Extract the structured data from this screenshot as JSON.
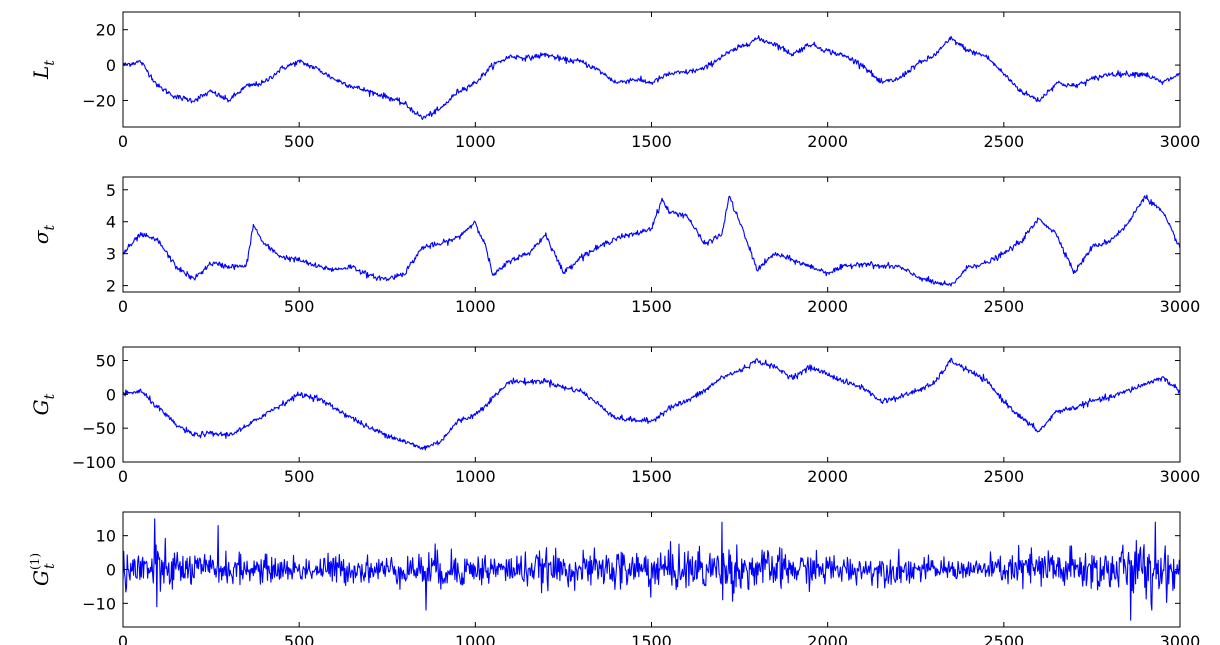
{
  "chart_data": [
    {
      "type": "line",
      "ylabel_base": "L",
      "ylabel_sub": "t",
      "ylabel_sup": "",
      "xlim": [
        0,
        3000
      ],
      "ylim": [
        -35,
        30
      ],
      "xticks": [
        0,
        500,
        1000,
        1500,
        2000,
        2500,
        3000
      ],
      "yticks": [
        -20,
        0,
        20
      ],
      "ytick_labels": [
        "−20",
        "0",
        "20"
      ],
      "color": "#0000ff",
      "grid": false,
      "series": [
        {
          "x": [
            0,
            50,
            100,
            150,
            200,
            250,
            300,
            350,
            400,
            450,
            500,
            550,
            600,
            650,
            700,
            750,
            800,
            850,
            900,
            950,
            1000,
            1050,
            1100,
            1150,
            1200,
            1250,
            1300,
            1350,
            1400,
            1450,
            1500,
            1550,
            1600,
            1650,
            1700,
            1750,
            1800,
            1850,
            1900,
            1950,
            2000,
            2050,
            2100,
            2150,
            2200,
            2250,
            2300,
            2350,
            2400,
            2450,
            2500,
            2550,
            2600,
            2650,
            2700,
            2750,
            2800,
            2850,
            2900,
            2950,
            3000
          ],
          "values": [
            0,
            2,
            -12,
            -18,
            -20,
            -15,
            -20,
            -12,
            -10,
            -2,
            2,
            -2,
            -8,
            -12,
            -15,
            -18,
            -22,
            -30,
            -25,
            -15,
            -10,
            0,
            5,
            4,
            6,
            3,
            2,
            -3,
            -10,
            -8,
            -10,
            -5,
            -4,
            -2,
            5,
            10,
            15,
            12,
            6,
            12,
            8,
            5,
            0,
            -10,
            -8,
            0,
            5,
            15,
            8,
            5,
            -5,
            -15,
            -20,
            -10,
            -12,
            -8,
            -5,
            -5,
            -5,
            -10,
            -5
          ]
        }
      ]
    },
    {
      "type": "line",
      "ylabel_base": "σ",
      "ylabel_sub": "t",
      "ylabel_sup": "",
      "xlim": [
        0,
        3000
      ],
      "ylim": [
        1.8,
        5.4
      ],
      "xticks": [
        0,
        500,
        1000,
        1500,
        2000,
        2500,
        3000
      ],
      "yticks": [
        2,
        3,
        4,
        5
      ],
      "ytick_labels": [
        "2",
        "3",
        "4",
        "5"
      ],
      "color": "#0000ff",
      "grid": false,
      "series": [
        {
          "x": [
            0,
            50,
            100,
            150,
            200,
            250,
            300,
            350,
            370,
            400,
            450,
            500,
            550,
            600,
            650,
            700,
            750,
            800,
            850,
            900,
            950,
            1000,
            1030,
            1050,
            1100,
            1150,
            1200,
            1250,
            1300,
            1350,
            1400,
            1450,
            1500,
            1530,
            1550,
            1600,
            1650,
            1700,
            1720,
            1750,
            1800,
            1850,
            1900,
            1950,
            2000,
            2050,
            2100,
            2150,
            2200,
            2250,
            2300,
            2350,
            2400,
            2450,
            2500,
            2550,
            2600,
            2650,
            2700,
            2750,
            2800,
            2850,
            2900,
            2950,
            3000
          ],
          "values": [
            3.0,
            3.6,
            3.4,
            2.6,
            2.2,
            2.7,
            2.6,
            2.6,
            3.9,
            3.3,
            2.9,
            2.8,
            2.6,
            2.5,
            2.6,
            2.3,
            2.2,
            2.4,
            3.2,
            3.3,
            3.5,
            4.0,
            3.2,
            2.3,
            2.8,
            3.0,
            3.6,
            2.4,
            2.9,
            3.2,
            3.5,
            3.6,
            3.8,
            4.7,
            4.3,
            4.2,
            3.3,
            3.6,
            4.8,
            4.0,
            2.5,
            3.0,
            2.8,
            2.6,
            2.4,
            2.6,
            2.7,
            2.6,
            2.6,
            2.3,
            2.1,
            2.0,
            2.6,
            2.7,
            3.0,
            3.4,
            4.1,
            3.6,
            2.4,
            3.2,
            3.4,
            3.9,
            4.8,
            4.3,
            3.2
          ]
        }
      ]
    },
    {
      "type": "line",
      "ylabel_base": "G",
      "ylabel_sub": "t",
      "ylabel_sup": "",
      "xlim": [
        0,
        3000
      ],
      "ylim": [
        -100,
        70
      ],
      "xticks": [
        0,
        500,
        1000,
        1500,
        2000,
        2500,
        3000
      ],
      "yticks": [
        -100,
        -50,
        0,
        50
      ],
      "ytick_labels": [
        "−100",
        "−50",
        "0",
        "50"
      ],
      "color": "#0000ff",
      "grid": false,
      "series": [
        {
          "x": [
            0,
            50,
            100,
            150,
            200,
            250,
            300,
            350,
            400,
            450,
            500,
            550,
            600,
            650,
            700,
            750,
            800,
            850,
            900,
            950,
            1000,
            1050,
            1100,
            1150,
            1200,
            1250,
            1300,
            1350,
            1400,
            1450,
            1500,
            1550,
            1600,
            1650,
            1700,
            1750,
            1800,
            1850,
            1900,
            1950,
            2000,
            2050,
            2100,
            2150,
            2200,
            2250,
            2300,
            2350,
            2400,
            2450,
            2500,
            2550,
            2600,
            2650,
            2700,
            2750,
            2800,
            2850,
            2900,
            2950,
            3000
          ],
          "values": [
            0,
            5,
            -20,
            -45,
            -60,
            -58,
            -60,
            -48,
            -30,
            -15,
            0,
            -5,
            -20,
            -35,
            -50,
            -60,
            -70,
            -80,
            -70,
            -40,
            -30,
            -5,
            20,
            18,
            20,
            10,
            5,
            -15,
            -35,
            -38,
            -40,
            -20,
            -10,
            5,
            25,
            35,
            50,
            40,
            25,
            40,
            30,
            18,
            10,
            -10,
            -5,
            5,
            15,
            50,
            35,
            20,
            -10,
            -35,
            -55,
            -25,
            -20,
            -10,
            -5,
            5,
            15,
            25,
            5
          ]
        }
      ]
    },
    {
      "type": "line",
      "ylabel_base": "G",
      "ylabel_sub": "t",
      "ylabel_sup": "(1)",
      "xlim": [
        0,
        3000
      ],
      "ylim": [
        -17,
        17
      ],
      "xticks": [
        0,
        500,
        1000,
        1500,
        2000,
        2500,
        3000
      ],
      "yticks": [
        -10,
        0,
        10
      ],
      "ytick_labels": [
        "−10",
        "0",
        "10"
      ],
      "color": "#0000ff",
      "grid": false,
      "noise_envelope": {
        "x": [
          0,
          100,
          200,
          300,
          400,
          500,
          600,
          700,
          800,
          900,
          1000,
          1100,
          1200,
          1300,
          1400,
          1500,
          1600,
          1700,
          1800,
          1900,
          2000,
          2100,
          2200,
          2300,
          2400,
          2500,
          2600,
          2700,
          2800,
          2900,
          3000
        ],
        "amplitude": [
          8,
          10,
          6,
          6,
          5,
          5,
          6,
          5,
          6,
          8,
          6,
          6,
          7,
          6,
          8,
          9,
          8,
          10,
          8,
          7,
          6,
          5,
          6,
          4,
          4,
          6,
          9,
          8,
          9,
          11,
          9
        ],
        "spikes": [
          [
            90,
            15
          ],
          [
            95,
            -11
          ],
          [
            270,
            13
          ],
          [
            860,
            -12
          ],
          [
            1700,
            14
          ],
          [
            2860,
            -15
          ],
          [
            2930,
            14
          ],
          [
            2920,
            -12
          ]
        ]
      }
    }
  ]
}
